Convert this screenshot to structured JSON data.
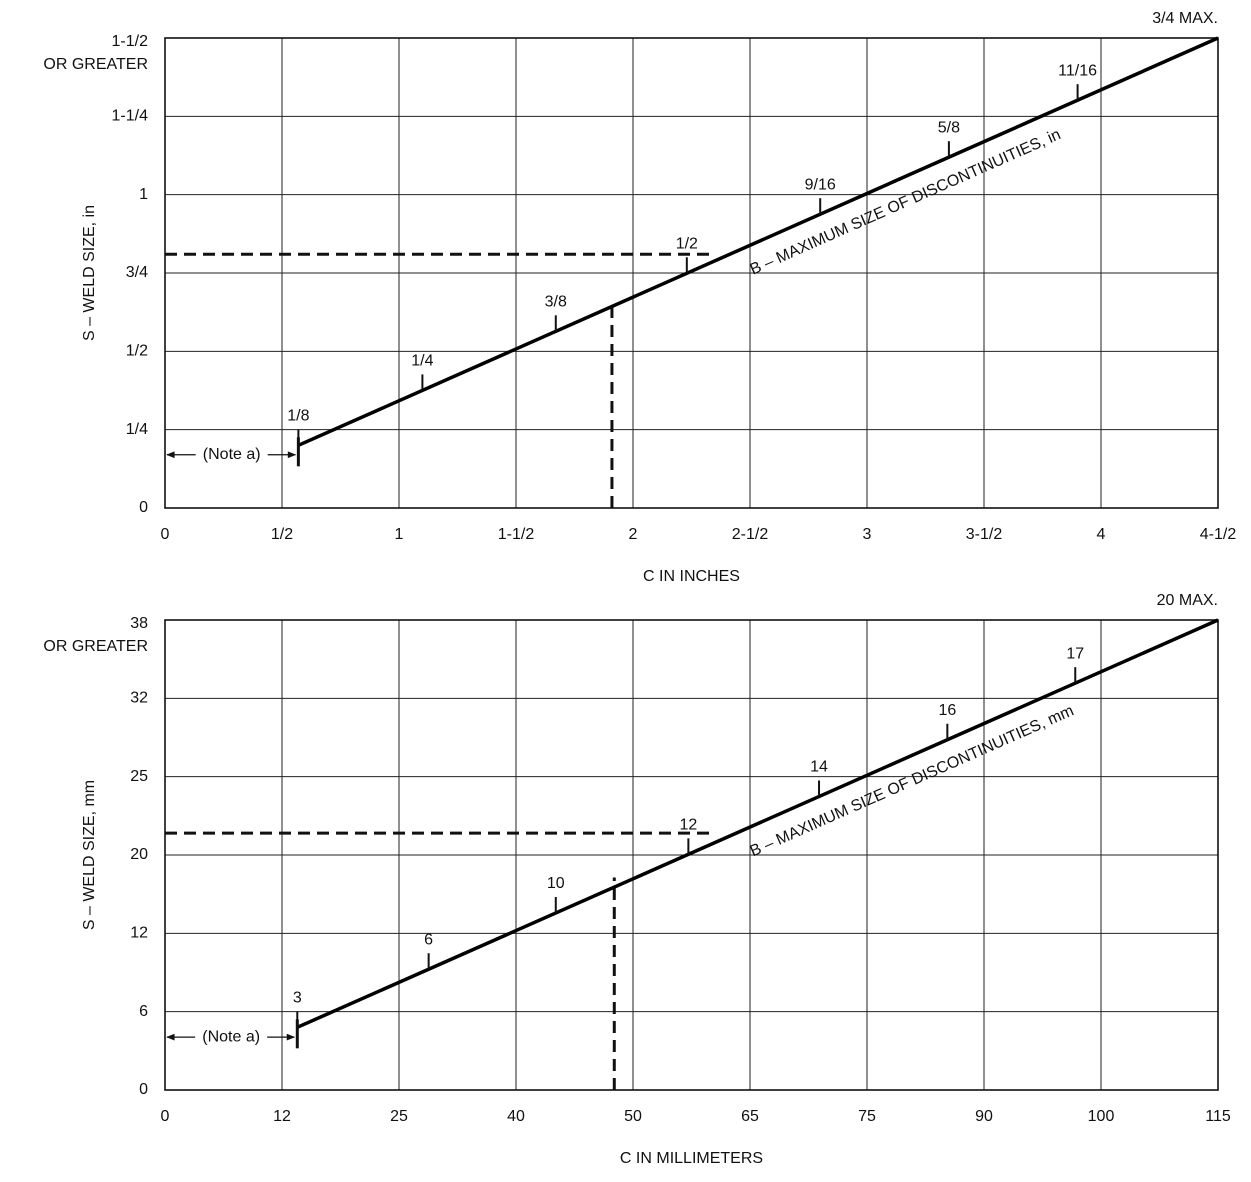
{
  "chart_data": [
    {
      "type": "line",
      "y_label": "S – WELD SIZE, in",
      "x_label": "C IN INCHES",
      "top_tick_note": "OR GREATER",
      "xlim": [
        0,
        4.5
      ],
      "ylim": [
        0,
        1.5
      ],
      "xticks": [
        0,
        {
          "value": 0.5,
          "label": "1/2"
        },
        1,
        {
          "value": 1.5,
          "label": "1-1/2"
        },
        2,
        {
          "value": 2.5,
          "label": "2-1/2"
        },
        3,
        {
          "value": 3.5,
          "label": "3-1/2"
        },
        4,
        {
          "value": 4.5,
          "label": "4-1/2"
        }
      ],
      "yticks": [
        0,
        {
          "value": 0.25,
          "label": "1/4"
        },
        {
          "value": 0.5,
          "label": "1/2"
        },
        {
          "value": 0.75,
          "label": "3/4"
        },
        1,
        {
          "value": 1.25,
          "label": "1-1/4"
        },
        {
          "value": 1.5,
          "label": "1-1/2"
        }
      ],
      "grid": true,
      "series": [
        {
          "name": "B – MAXIMUM SIZE OF DISCONTINUITIES, in",
          "color": "#000000",
          "x": [
            0.57,
            4.5
          ],
          "values": [
            0.2,
            1.5
          ]
        }
      ],
      "b_marks": {
        "labels": [
          "1/8",
          "1/4",
          "3/8",
          "1/2",
          "9/16",
          "5/8",
          "11/16",
          "3/4 MAX."
        ],
        "x": [
          0.57,
          1.1,
          1.67,
          2.23,
          2.8,
          3.35,
          3.9,
          4.5
        ]
      },
      "reference_lines": {
        "horizontal": {
          "y": 0.81,
          "x_end": 2.34
        },
        "vertical": {
          "x": 1.91,
          "y_end": 0.65
        }
      },
      "note": {
        "text": "(Note a)",
        "y": 0.17,
        "x_end": 0.57
      }
    },
    {
      "type": "line",
      "y_label": "S – WELD SIZE, mm",
      "x_label": "C IN MILLIMETERS",
      "top_tick_note": "OR GREATER",
      "xlim": [
        0,
        115
      ],
      "ylim": [
        0,
        38
      ],
      "xticks": [
        0,
        12,
        25,
        40,
        50,
        65,
        75,
        90,
        100,
        115
      ],
      "yticks": [
        0,
        6,
        12,
        20,
        25,
        32,
        38
      ],
      "grid": true,
      "series": [
        {
          "name": "B – MAXIMUM SIZE OF DISCONTINUITIES, mm",
          "color": "#000000",
          "x": [
            13.7,
            115
          ],
          "values": [
            4.8,
            38
          ]
        }
      ],
      "b_marks": {
        "labels": [
          "3",
          "6",
          "10",
          "12",
          "14",
          "16",
          "17",
          "20 MAX."
        ],
        "x": [
          13.7,
          28.8,
          43.4,
          57.1,
          70.9,
          85.3,
          97.8,
          115
        ]
      },
      "reference_lines": {
        "horizontal": {
          "y": 21.4,
          "x_end": 60.2
        },
        "vertical": {
          "x": 48.4,
          "y_end": 17.7
        }
      },
      "note": {
        "text": "(Note a)",
        "y": 4.05,
        "x_end": 13.7
      }
    }
  ]
}
